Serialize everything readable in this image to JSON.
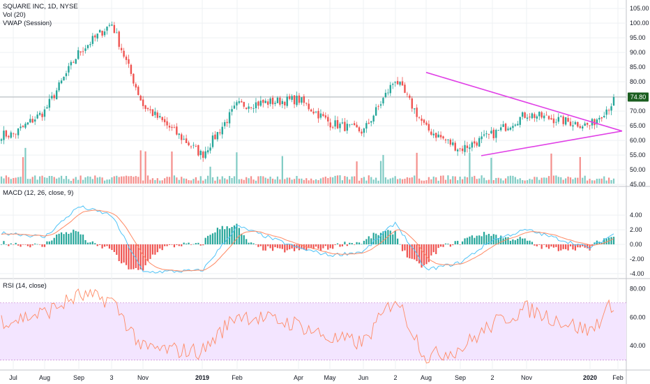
{
  "price_pane": {
    "legend": [
      "SQUARE INC, 1D, NYSE",
      "Vol (20)",
      "VWAP (Session)"
    ],
    "y_ticks": [
      "105.00",
      "100.00",
      "95.00",
      "90.00",
      "85.00",
      "80.00",
      "75.00",
      "70.00",
      "65.00",
      "60.00",
      "55.00",
      "50.00",
      "45.00"
    ],
    "last_price": "74.80",
    "colors": {
      "up": "#26a69a",
      "down": "#ef5350",
      "trendline": "#e040e6",
      "last_price_bg": "#1b5e20"
    }
  },
  "macd_pane": {
    "legend": "MACD (12, 26, close, 9)",
    "y_ticks": [
      "4.00",
      "2.00",
      "0.00",
      "-2.00",
      "-4.00"
    ],
    "colors": {
      "macd": "#4fc3f7",
      "signal": "#ff8a65",
      "hist_up": "#26a69a",
      "hist_down": "#ef5350"
    }
  },
  "rsi_pane": {
    "legend": "RSI (14, close)",
    "y_ticks": [
      "80.00",
      "60.00",
      "40.00"
    ],
    "band": [
      30,
      70
    ],
    "colors": {
      "line": "#ff8a65",
      "band": "#f3e5ff",
      "band_edge": "#ce93d8"
    }
  },
  "x_ticks": [
    "Jul",
    "Aug",
    "Sep",
    "3",
    "Nov",
    "2019",
    "Feb",
    "Apr",
    "May",
    "Jun",
    "2",
    "Aug",
    "Sep",
    "2",
    "Nov",
    "2020",
    "Feb"
  ],
  "chart_data": [
    {
      "type": "candlestick",
      "title": "SQUARE INC, 1D, NYSE",
      "x": [
        "Jul",
        "Aug",
        "Sep",
        "3",
        "Nov",
        "2019",
        "Feb",
        "Apr",
        "May",
        "Jun",
        "2",
        "Aug",
        "Sep",
        "2",
        "Nov",
        "2020",
        "Feb"
      ],
      "close_path": [
        [
          "Jul",
          62
        ],
        [
          "Aug",
          70
        ],
        [
          "Sep",
          90
        ],
        [
          "3",
          100
        ],
        [
          "Nov",
          72
        ],
        [
          "2019",
          55
        ],
        [
          "Feb",
          72
        ],
        [
          "Apr",
          74
        ],
        [
          "May",
          66
        ],
        [
          "Jun",
          63
        ],
        [
          "2",
          81
        ],
        [
          "Aug",
          64
        ],
        [
          "Sep",
          57
        ],
        [
          "2",
          62
        ],
        [
          "Nov",
          69
        ],
        [
          "2020",
          65
        ],
        [
          "Feb",
          74.8
        ]
      ],
      "last_value": 74.8,
      "ylim": [
        45,
        105
      ],
      "series": [
        {
          "name": "Vol (20)"
        },
        {
          "name": "VWAP (Session)"
        }
      ]
    },
    {
      "type": "line",
      "title": "MACD (12, 26, close, 9)",
      "ylim": [
        -4.5,
        6.5
      ],
      "macd": [
        [
          "Jul",
          1.5
        ],
        [
          "Aug",
          1.0
        ],
        [
          "Sep",
          5.2
        ],
        [
          "3",
          4.0
        ],
        [
          "Nov",
          -3.8
        ],
        [
          "2019",
          -3.6
        ],
        [
          "Feb",
          2.5
        ],
        [
          "Apr",
          -0.5
        ],
        [
          "May",
          -1.5
        ],
        [
          "Jun",
          -1.0
        ],
        [
          "2",
          3.0
        ],
        [
          "Aug",
          -3.5
        ],
        [
          "Sep",
          -2.5
        ],
        [
          "2",
          0.6
        ],
        [
          "Nov",
          2.0
        ],
        [
          "2020",
          -0.5
        ],
        [
          "Feb",
          1.8
        ]
      ]
    },
    {
      "type": "line",
      "title": "RSI (14, close)",
      "ylim": [
        25,
        85
      ],
      "rsi": [
        [
          "Jul",
          58
        ],
        [
          "Aug",
          63
        ],
        [
          "Sep",
          75
        ],
        [
          "3",
          72
        ],
        [
          "Nov",
          38
        ],
        [
          "2019",
          36
        ],
        [
          "Feb",
          62
        ],
        [
          "Apr",
          55
        ],
        [
          "May",
          45
        ],
        [
          "Jun",
          42
        ],
        [
          "2",
          74
        ],
        [
          "Aug",
          32
        ],
        [
          "Sep",
          38
        ],
        [
          "2",
          55
        ],
        [
          "Nov",
          66
        ],
        [
          "2020",
          50
        ],
        [
          "Feb",
          74
        ]
      ]
    }
  ]
}
